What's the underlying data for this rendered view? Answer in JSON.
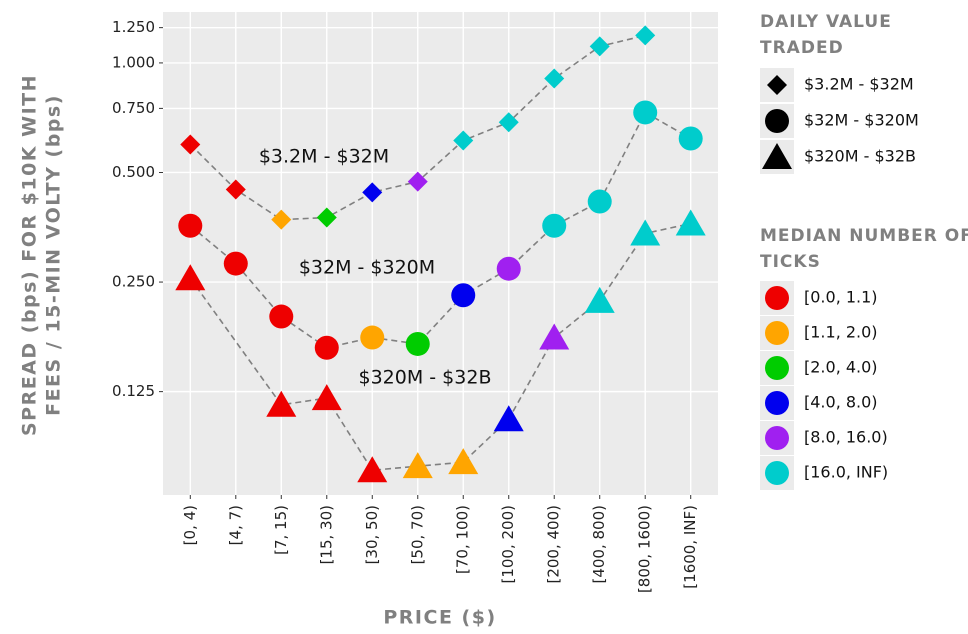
{
  "chart_data": {
    "type": "scatter_line",
    "y_label": [
      "SPREAD (bps) FOR $10K WITH",
      "FEES / 15-MIN VOLTY (bps)"
    ],
    "x_label": "PRICE ($)",
    "categories": [
      "[0, 4)",
      "[4, 7)",
      "[7, 15)",
      "[15, 30)",
      "[30, 50)",
      "[50, 70)",
      "[70, 100)",
      "[100, 200)",
      "[200, 400)",
      "[400, 800)",
      "[800, 1600)",
      "[1600, INF)"
    ],
    "log_y": true,
    "ylim": [
      0.065,
      1.38
    ],
    "yticks": [
      {
        "value": 0.125,
        "label": "0.125"
      },
      {
        "value": 0.25,
        "label": "0.250"
      },
      {
        "value": 0.5,
        "label": "0.500"
      },
      {
        "value": 0.75,
        "label": "0.750"
      },
      {
        "value": 1,
        "label": "1.000"
      },
      {
        "value": 1.25,
        "label": "1.250"
      }
    ],
    "grid": true,
    "line_color": "#808080",
    "shape_legend_title": "DAILY VALUE TRADED",
    "color_legend_title": "MEDIAN NUMBER OF TICKS",
    "color_legend": [
      {
        "name": "[0.0, 1.1)",
        "color": "#ee0000"
      },
      {
        "name": "[1.1, 2.0)",
        "color": "#ffa500"
      },
      {
        "name": "[2.0, 4.0)",
        "color": "#00cc00"
      },
      {
        "name": "[4.0, 8.0)",
        "color": "#0000ee"
      },
      {
        "name": "[8.0, 16.0)",
        "color": "#a020f0"
      },
      {
        "name": "[16.0, INF)",
        "color": "#00cccc"
      }
    ],
    "series": [
      {
        "name": "$3.2M - $32M",
        "shape": "diamond",
        "values": [
          0.597,
          0.449,
          0.371,
          0.376,
          0.441,
          0.472,
          0.612,
          0.687,
          0.906,
          1.11,
          1.19,
          null
        ],
        "point_colors": [
          "#ee0000",
          "#ee0000",
          "#ffa500",
          "#00cc00",
          "#0000ee",
          "#a020f0",
          "#00cccc",
          "#00cccc",
          "#00cccc",
          "#00cccc",
          "#00cccc",
          null
        ]
      },
      {
        "name": "$32M - $320M",
        "shape": "circle",
        "values": [
          0.357,
          0.281,
          0.201,
          0.165,
          0.176,
          0.169,
          0.23,
          0.272,
          0.357,
          0.416,
          0.731,
          0.62
        ],
        "point_colors": [
          "#ee0000",
          "#ee0000",
          "#ee0000",
          "#ee0000",
          "#ffa500",
          "#00cc00",
          "#0000ee",
          "#a020f0",
          "#00cccc",
          "#00cccc",
          "#00cccc",
          "#00cccc"
        ]
      },
      {
        "name": "$320M - $32B",
        "shape": "triangle",
        "values": [
          0.256,
          null,
          0.115,
          0.12,
          0.076,
          0.078,
          0.08,
          0.105,
          0.176,
          0.222,
          0.34,
          0.362
        ],
        "point_colors": [
          "#ee0000",
          null,
          "#ee0000",
          "#ee0000",
          "#ee0000",
          "#ffa500",
          "#ffa500",
          "#0000ee",
          "#a020f0",
          "#00cccc",
          "#00cccc",
          "#00cccc"
        ]
      }
    ],
    "annotations": [
      "$3.2M - $32M",
      "$32M - $320M",
      "$320M - $32B"
    ]
  }
}
